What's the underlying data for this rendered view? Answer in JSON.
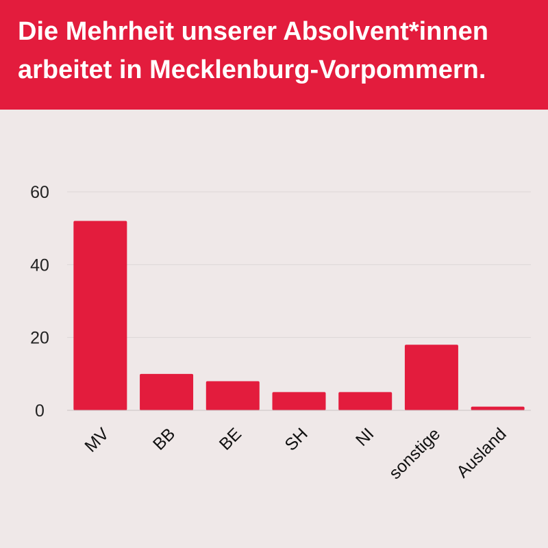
{
  "header": {
    "title": "Die Mehrheit unserer Absolvent*innen arbeitet in Mecklenburg-Vorpommern."
  },
  "colors": {
    "header_bg": "#e31c3d",
    "bar": "#e31c3d",
    "background": "#efe8e8",
    "gridline": "#dcd6d6"
  },
  "chart_data": {
    "type": "bar",
    "title": "Die Mehrheit unserer Absolvent*innen arbeitet in Mecklenburg-Vorpommern.",
    "categories": [
      "MV",
      "BB",
      "BE",
      "SH",
      "NI",
      "sonstige",
      "Ausland"
    ],
    "values": [
      52,
      10,
      8,
      5,
      5,
      18,
      1
    ],
    "ylim": [
      0,
      60
    ],
    "yticks": [
      0,
      20,
      40,
      60
    ],
    "xlabel": "",
    "ylabel": "",
    "grid": true,
    "legend": "none"
  }
}
